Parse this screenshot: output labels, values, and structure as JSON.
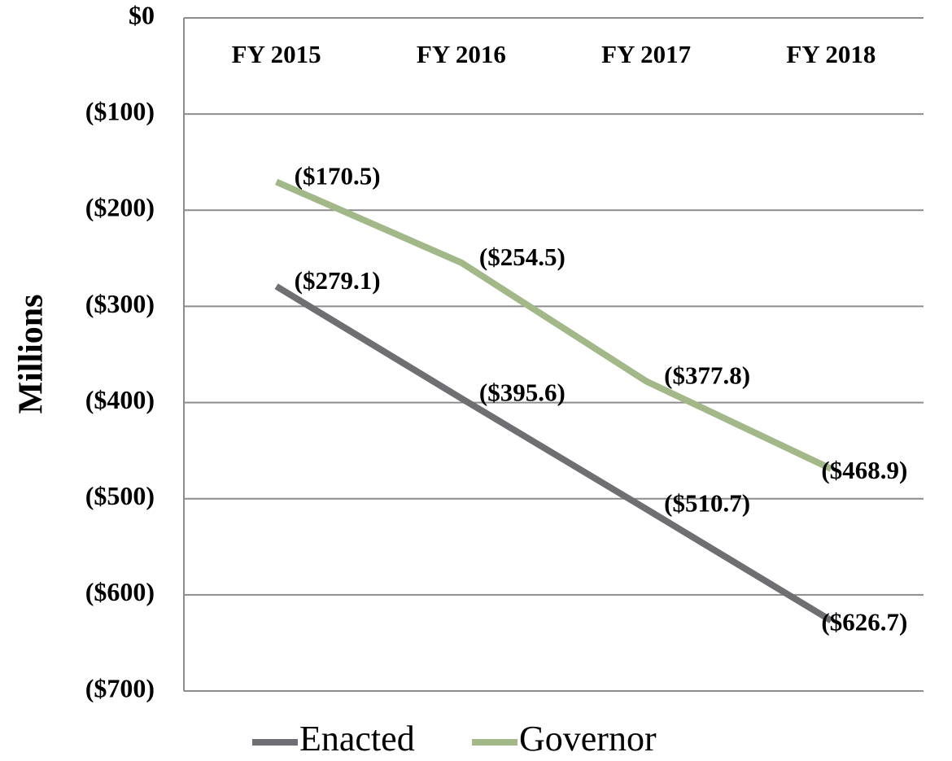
{
  "chart_data": {
    "type": "line",
    "y_label": "Millions",
    "categories": [
      "FY 2015",
      "FY 2016",
      "FY 2017",
      "FY 2018"
    ],
    "series": [
      {
        "name": "Enacted",
        "color": "#6f6f73",
        "values": [
          -279.1,
          -395.6,
          -510.7,
          -626.7
        ],
        "value_labels": [
          "($279.1)",
          "($395.6)",
          "($510.7)",
          "($626.7)"
        ]
      },
      {
        "name": "Governor",
        "color": "#a2b889",
        "values": [
          -170.5,
          -254.5,
          -377.8,
          -468.9
        ],
        "value_labels": [
          "($170.5)",
          "($254.5)",
          "($377.8)",
          "($468.9)"
        ]
      }
    ],
    "ylim": [
      -700,
      0
    ],
    "yticks": [
      {
        "value": 0,
        "label": "$0"
      },
      {
        "value": -100,
        "label": "($100)"
      },
      {
        "value": -200,
        "label": "($200)"
      },
      {
        "value": -300,
        "label": "($300)"
      },
      {
        "value": -400,
        "label": "($400)"
      },
      {
        "value": -500,
        "label": "($500)"
      },
      {
        "value": -600,
        "label": "($600)"
      },
      {
        "value": -700,
        "label": "($700)"
      }
    ],
    "grid": true,
    "legend": "bottom"
  }
}
